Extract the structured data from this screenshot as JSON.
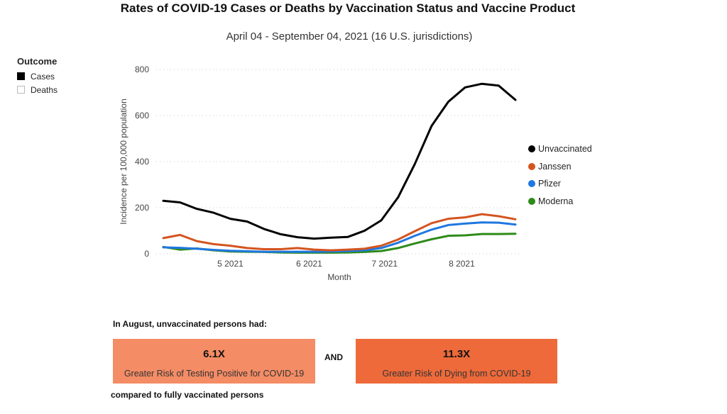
{
  "header": {
    "title": "Rates of COVID-19 Cases or Deaths by Vaccination Status and Vaccine Product",
    "subtitle": "April 04 - September 04, 2021 (16 U.S. jurisdictions)"
  },
  "outcome_filter": {
    "title": "Outcome",
    "items": [
      {
        "label": "Cases",
        "selected": true
      },
      {
        "label": "Deaths",
        "selected": false
      }
    ]
  },
  "chart_data": {
    "type": "line",
    "title": "Rates of COVID-19 Cases or Deaths by Vaccination Status and Vaccine Product",
    "xlabel": "Month",
    "ylabel": "Incidence per 100,000 population",
    "ylim": [
      0,
      800
    ],
    "yticks": [
      0,
      200,
      400,
      600,
      800
    ],
    "xticks": [
      {
        "label": "5 2021",
        "index": 4
      },
      {
        "label": "6 2021",
        "index": 8.7
      },
      {
        "label": "7 2021",
        "index": 13.2
      },
      {
        "label": "8 2021",
        "index": 17.8
      }
    ],
    "x_count": 23,
    "grid": true,
    "legend_position": "right",
    "series": [
      {
        "name": "Unvaccinated",
        "color": "#000000",
        "values": [
          230,
          223,
          195,
          178,
          152,
          140,
          108,
          85,
          72,
          66,
          70,
          73,
          100,
          145,
          245,
          390,
          555,
          660,
          722,
          738,
          730,
          668,
          668
        ]
      },
      {
        "name": "Janssen",
        "color": "#d4541f",
        "values": [
          68,
          82,
          55,
          42,
          35,
          25,
          20,
          20,
          25,
          18,
          15,
          18,
          22,
          35,
          62,
          98,
          133,
          152,
          158,
          172,
          163,
          150,
          150
        ]
      },
      {
        "name": "Pfizer",
        "color": "#1f77e0",
        "values": [
          28,
          26,
          22,
          17,
          13,
          11,
          9,
          9,
          9,
          9,
          10,
          12,
          15,
          25,
          48,
          78,
          105,
          125,
          131,
          136,
          135,
          127,
          127
        ]
      },
      {
        "name": "Moderna",
        "color": "#2e8b1a",
        "values": [
          30,
          18,
          23,
          15,
          10,
          9,
          8,
          6,
          5,
          5,
          5,
          6,
          8,
          12,
          25,
          45,
          63,
          78,
          80,
          86,
          86,
          87,
          87
        ]
      }
    ]
  },
  "summary": {
    "lead": "In August, unvaccinated persons had:",
    "cards": [
      {
        "value": "6.1X",
        "label": "Greater Risk of Testing Positive for COVID-19",
        "color": "#f48c65"
      },
      {
        "value": "11.3X",
        "label": "Greater Risk of Dying from COVID-19",
        "color": "#ee6a3a"
      }
    ],
    "connector": "AND",
    "footer": "compared to fully vaccinated persons"
  }
}
